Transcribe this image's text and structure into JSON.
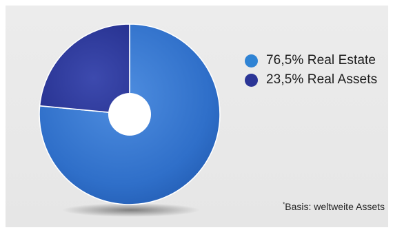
{
  "chart_data": {
    "type": "pie",
    "variant": "donut",
    "slices": [
      {
        "label": "76,5% Real Estate",
        "value": 76.5,
        "color": "#2f6fc9"
      },
      {
        "label": "23,5% Real Assets",
        "value": 23.5,
        "color": "#2f3a9e"
      }
    ],
    "legend_position": "right"
  },
  "colors": {
    "background": "#e8e8e8",
    "real_estate_dot": "#2f83d4",
    "real_assets_dot": "#2b3596"
  },
  "legend": {
    "items": [
      {
        "label": "76,5% Real Estate",
        "color": "#2f83d4"
      },
      {
        "label": "23,5% Real Assets",
        "color": "#2b3596"
      }
    ]
  },
  "footnote": {
    "marker": "*",
    "text": "Basis: weltweite Assets"
  }
}
